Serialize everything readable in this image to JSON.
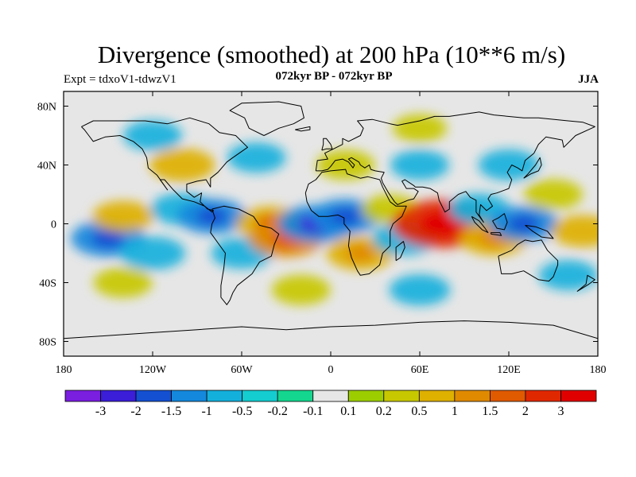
{
  "header": {
    "title": "Divergence (smoothed) at 200 hPa (10**6 m/s)",
    "expt": "Expt = tdxoV1-tdwzV1",
    "period": "072kyr BP - 072kyr BP",
    "season": "JJA"
  },
  "chart_data": {
    "type": "heatmap",
    "title": "Divergence (smoothed) at 200 hPa (10**6 m/s)",
    "xlabel": "",
    "ylabel": "",
    "xlim": [
      -180,
      180
    ],
    "ylim": [
      -90,
      90
    ],
    "x_ticks": [
      -180,
      -120,
      -60,
      0,
      60,
      120,
      180
    ],
    "x_tick_labels": [
      "180",
      "120W",
      "60W",
      "0",
      "60E",
      "120E",
      "180"
    ],
    "y_ticks": [
      80,
      40,
      0,
      -40,
      -80
    ],
    "y_tick_labels": [
      "80N",
      "40N",
      "0",
      "40S",
      "80S"
    ],
    "colorbar": {
      "levels": [
        "-3",
        "-2",
        "-1.5",
        "-1",
        "-0.5",
        "-0.2",
        "-0.1",
        "0.1",
        "0.2",
        "0.5",
        "1",
        "1.5",
        "2",
        "3"
      ],
      "colors": [
        "#7a1ee0",
        "#3a1ed8",
        "#1450d2",
        "#1488dc",
        "#14b0dc",
        "#14cdd0",
        "#14d68e",
        "#e6e6e6",
        "#9ccd00",
        "#c8c800",
        "#deb000",
        "#e08a00",
        "#e05a00",
        "#e02800",
        "#e00000"
      ]
    },
    "fields": [
      {
        "lon": -150,
        "lat": -10,
        "value": -1.2
      },
      {
        "lon": -140,
        "lat": 5,
        "value": 0.6
      },
      {
        "lon": -120,
        "lat": -20,
        "value": -0.8
      },
      {
        "lon": -100,
        "lat": 10,
        "value": -0.7
      },
      {
        "lon": -80,
        "lat": 5,
        "value": -1.0
      },
      {
        "lon": -60,
        "lat": -20,
        "value": -0.6
      },
      {
        "lon": -40,
        "lat": 0,
        "value": 1.0
      },
      {
        "lon": -30,
        "lat": -10,
        "value": 1.2
      },
      {
        "lon": -10,
        "lat": 0,
        "value": -1.3
      },
      {
        "lon": 10,
        "lat": 5,
        "value": -1.0
      },
      {
        "lon": 20,
        "lat": -20,
        "value": 0.9
      },
      {
        "lon": 40,
        "lat": 10,
        "value": 0.4
      },
      {
        "lon": 50,
        "lat": -10,
        "value": -0.8
      },
      {
        "lon": 75,
        "lat": 0,
        "value": 2.4
      },
      {
        "lon": 100,
        "lat": 10,
        "value": -0.6
      },
      {
        "lon": 110,
        "lat": -10,
        "value": 0.9
      },
      {
        "lon": 130,
        "lat": 0,
        "value": -1.0
      },
      {
        "lon": 150,
        "lat": 20,
        "value": 0.5
      },
      {
        "lon": 170,
        "lat": -5,
        "value": 0.7
      },
      {
        "lon": -100,
        "lat": 40,
        "value": 0.8
      },
      {
        "lon": -50,
        "lat": 45,
        "value": -0.5
      },
      {
        "lon": 10,
        "lat": 40,
        "value": 0.5
      },
      {
        "lon": 60,
        "lat": 40,
        "value": -0.5
      },
      {
        "lon": 120,
        "lat": 40,
        "value": -0.6
      },
      {
        "lon": -120,
        "lat": 60,
        "value": -0.5
      },
      {
        "lon": 60,
        "lat": 65,
        "value": 0.3
      },
      {
        "lon": -20,
        "lat": -45,
        "value": 0.5
      },
      {
        "lon": 60,
        "lat": -45,
        "value": -0.6
      },
      {
        "lon": 160,
        "lat": -35,
        "value": -0.5
      },
      {
        "lon": -140,
        "lat": -40,
        "value": 0.5
      }
    ]
  }
}
